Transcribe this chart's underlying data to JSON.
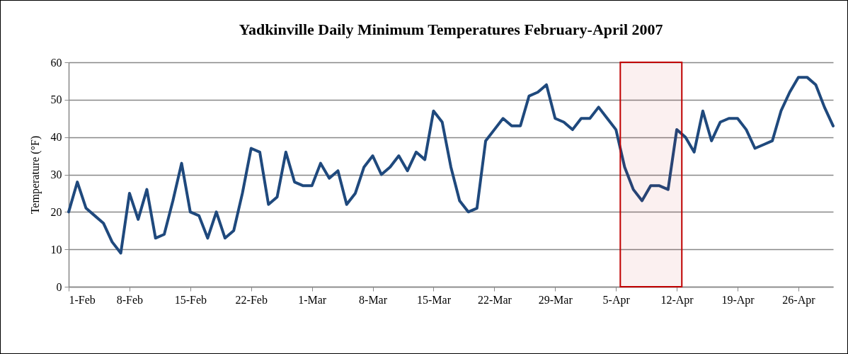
{
  "chart_data": {
    "type": "line",
    "title": "Yadkinville Daily Minimum Temperatures February-April 2007",
    "ylabel": "Temperature (°F)",
    "x": [
      "2007-02-01",
      "2007-02-02",
      "2007-02-03",
      "2007-02-04",
      "2007-02-05",
      "2007-02-06",
      "2007-02-07",
      "2007-02-08",
      "2007-02-09",
      "2007-02-10",
      "2007-02-11",
      "2007-02-12",
      "2007-02-13",
      "2007-02-14",
      "2007-02-15",
      "2007-02-16",
      "2007-02-17",
      "2007-02-18",
      "2007-02-19",
      "2007-02-20",
      "2007-02-21",
      "2007-02-22",
      "2007-02-23",
      "2007-02-24",
      "2007-02-25",
      "2007-02-26",
      "2007-02-27",
      "2007-02-28",
      "2007-03-01",
      "2007-03-02",
      "2007-03-03",
      "2007-03-04",
      "2007-03-05",
      "2007-03-06",
      "2007-03-07",
      "2007-03-08",
      "2007-03-09",
      "2007-03-10",
      "2007-03-11",
      "2007-03-12",
      "2007-03-13",
      "2007-03-14",
      "2007-03-15",
      "2007-03-16",
      "2007-03-17",
      "2007-03-18",
      "2007-03-19",
      "2007-03-20",
      "2007-03-21",
      "2007-03-22",
      "2007-03-23",
      "2007-03-24",
      "2007-03-25",
      "2007-03-26",
      "2007-03-27",
      "2007-03-28",
      "2007-03-29",
      "2007-03-30",
      "2007-03-31",
      "2007-04-01",
      "2007-04-02",
      "2007-04-03",
      "2007-04-04",
      "2007-04-05",
      "2007-04-06",
      "2007-04-07",
      "2007-04-08",
      "2007-04-09",
      "2007-04-10",
      "2007-04-11",
      "2007-04-12",
      "2007-04-13",
      "2007-04-14",
      "2007-04-15",
      "2007-04-16",
      "2007-04-17",
      "2007-04-18",
      "2007-04-19",
      "2007-04-20",
      "2007-04-21",
      "2007-04-22",
      "2007-04-23",
      "2007-04-24",
      "2007-04-25",
      "2007-04-26",
      "2007-04-27",
      "2007-04-28",
      "2007-04-29",
      "2007-04-30"
    ],
    "series": [
      {
        "color": "#1f497d",
        "values": [
          20,
          28,
          21,
          19,
          17,
          12,
          9,
          25,
          18,
          26,
          13,
          14,
          23,
          33,
          20,
          19,
          13,
          20,
          13,
          15,
          25,
          37,
          36,
          22,
          24,
          36,
          28,
          27,
          27,
          33,
          29,
          31,
          22,
          25,
          32,
          35,
          30,
          32,
          35,
          31,
          36,
          34,
          47,
          44,
          32,
          23,
          20,
          21,
          39,
          42,
          45,
          43,
          43,
          51,
          52,
          54,
          45,
          44,
          42,
          45,
          45,
          48,
          45,
          42,
          32,
          26,
          23,
          27,
          27,
          26,
          42,
          40,
          36,
          47,
          39,
          44,
          45,
          45,
          42,
          37,
          38,
          39,
          47,
          52,
          56,
          56,
          54,
          48,
          43
        ]
      }
    ],
    "xlim": [
      "2007-02-01",
      "2007-04-30"
    ],
    "xticks": [
      {
        "value": "2007-02-01",
        "label": "1-Feb"
      },
      {
        "value": "2007-02-08",
        "label": "8-Feb"
      },
      {
        "value": "2007-02-15",
        "label": "15-Feb"
      },
      {
        "value": "2007-02-22",
        "label": "22-Feb"
      },
      {
        "value": "2007-03-01",
        "label": "1-Mar"
      },
      {
        "value": "2007-03-08",
        "label": "8-Mar"
      },
      {
        "value": "2007-03-15",
        "label": "15-Mar"
      },
      {
        "value": "2007-03-22",
        "label": "22-Mar"
      },
      {
        "value": "2007-03-29",
        "label": "29-Mar"
      },
      {
        "value": "2007-04-05",
        "label": "5-Apr"
      },
      {
        "value": "2007-04-12",
        "label": "12-Apr"
      },
      {
        "value": "2007-04-19",
        "label": "19-Apr"
      },
      {
        "value": "2007-04-26",
        "label": "26-Apr"
      }
    ],
    "ylim": [
      0,
      60
    ],
    "yticks": [
      0,
      10,
      20,
      30,
      40,
      50,
      60
    ],
    "bands": [
      {
        "axis": "x",
        "from": "2007-04-05T12:00",
        "to": "2007-04-12T14:00",
        "color": "#c00000"
      }
    ],
    "grid": "y",
    "marker": "none",
    "line_style": "solid"
  }
}
